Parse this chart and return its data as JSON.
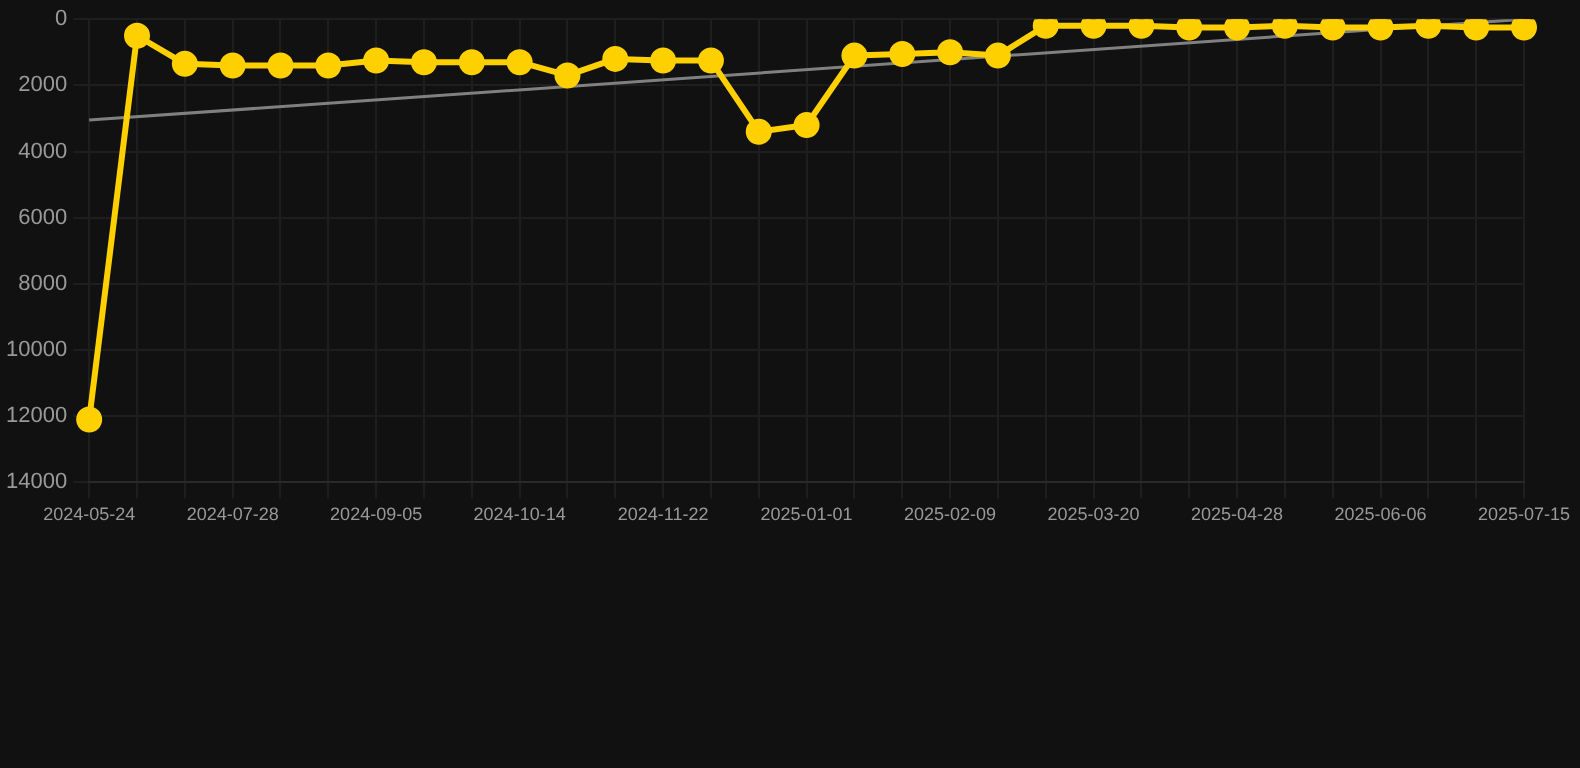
{
  "chart_data": {
    "type": "line",
    "categories": [
      "2024-05-24",
      null,
      null,
      "2024-07-28",
      null,
      null,
      "2024-09-05",
      null,
      null,
      "2024-10-14",
      null,
      null,
      "2024-11-22",
      null,
      null,
      "2025-01-01",
      null,
      null,
      "2025-02-09",
      null,
      null,
      "2025-03-20",
      null,
      null,
      "2025-04-28",
      null,
      null,
      "2025-06-06",
      null,
      null,
      "2025-07-15"
    ],
    "series": [
      {
        "color": "#ffd000",
        "values": [
          12100,
          500,
          1350,
          1400,
          1400,
          1400,
          1250,
          1300,
          1300,
          1300,
          1700,
          1200,
          1250,
          1250,
          3400,
          3200,
          1100,
          1050,
          1000,
          1100,
          200,
          200,
          200,
          250,
          250,
          200,
          250,
          250,
          200,
          250,
          250
        ]
      },
      {
        "type": "line",
        "color": "#808080",
        "values": [
          3050,
          null,
          null,
          null,
          null,
          null,
          null,
          null,
          null,
          null,
          null,
          null,
          null,
          null,
          null,
          null,
          null,
          null,
          null,
          null,
          null,
          null,
          null,
          null,
          null,
          null,
          null,
          null,
          null,
          null,
          0
        ],
        "marker": "none"
      }
    ],
    "ylim": [
      14000,
      0
    ],
    "yticks": [
      0,
      2000,
      4000,
      6000,
      8000,
      10000,
      12000,
      14000
    ],
    "grid": true,
    "legend": false,
    "marker": "circle"
  }
}
